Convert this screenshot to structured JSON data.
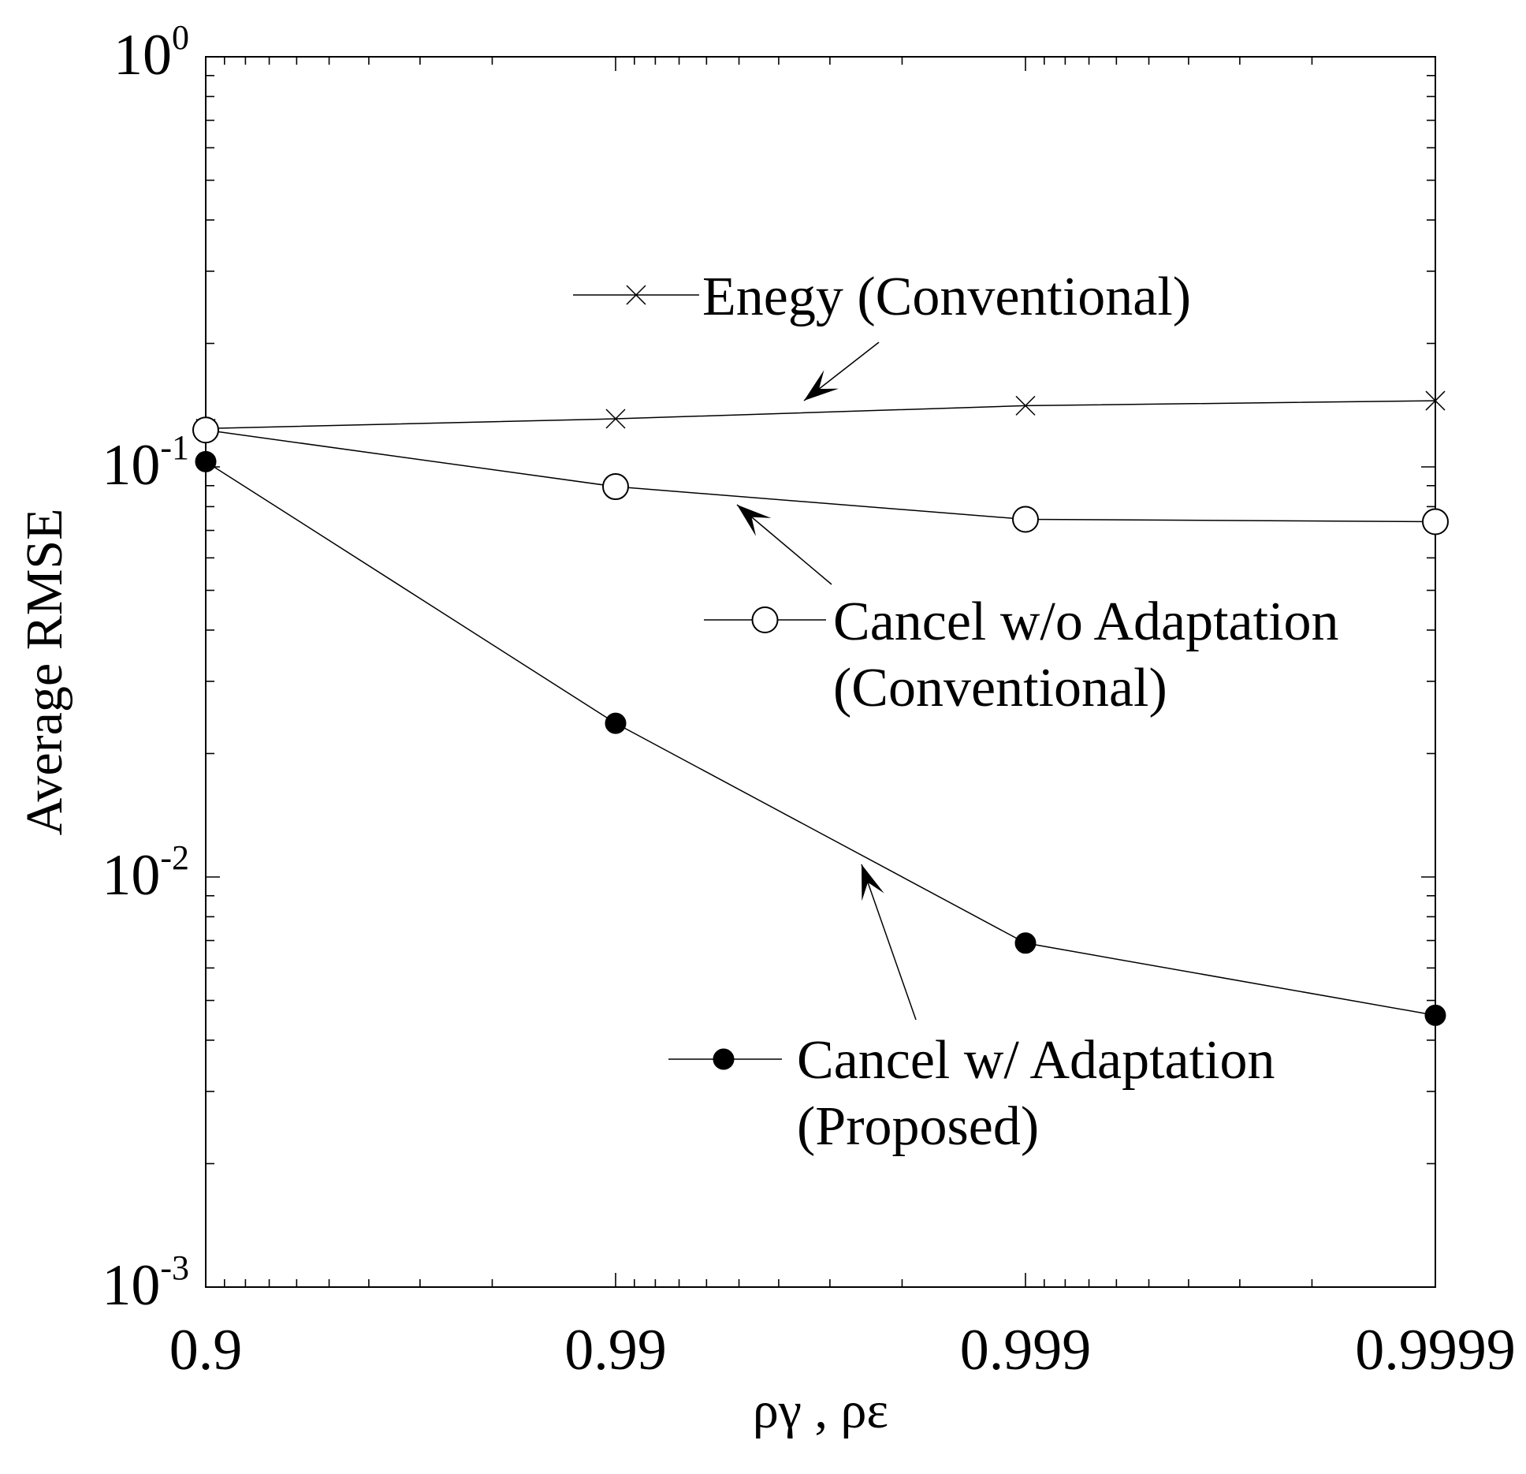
{
  "chart_data": {
    "type": "line",
    "title": "",
    "xlabel": "ργ , ρε",
    "ylabel": "Average RMSE",
    "x_scale": "log(1-x)",
    "y_scale": "log",
    "x": [
      0.9,
      0.99,
      0.999,
      0.9999
    ],
    "x_tick_labels": [
      "0.9",
      "0.99",
      "0.999",
      "0.9999"
    ],
    "y_tick_labels": [
      {
        "base": "10",
        "exp": "0"
      },
      {
        "base": "10",
        "exp": "-1"
      },
      {
        "base": "10",
        "exp": "-2"
      },
      {
        "base": "10",
        "exp": "-3"
      }
    ],
    "ylim": [
      0.001,
      1
    ],
    "grid": false,
    "series": [
      {
        "key": "energy",
        "name": "Enegy (Conventional)",
        "marker": "x",
        "values": [
          0.124,
          0.131,
          0.141,
          0.145
        ],
        "legend_lines": [
          "Enegy (Conventional)"
        ]
      },
      {
        "key": "cancel_no_adapt",
        "name": "Cancel w/o Adaptation (Conventional)",
        "marker": "open-circle",
        "values": [
          0.123,
          0.0895,
          0.0745,
          0.0735
        ],
        "legend_lines": [
          "Cancel w/o Adaptation",
          "(Conventional)"
        ]
      },
      {
        "key": "cancel_adapt",
        "name": "Cancel w/ Adaptation (Proposed)",
        "marker": "filled-circle",
        "values": [
          0.103,
          0.0237,
          0.0069,
          0.0046
        ],
        "legend_lines": [
          "Cancel w/ Adaptation",
          "(Proposed)"
        ]
      }
    ]
  }
}
